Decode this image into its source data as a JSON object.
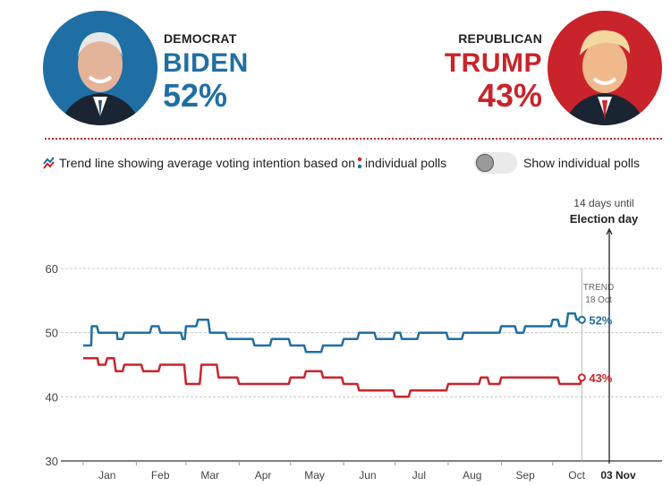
{
  "candidates": {
    "dem": {
      "party": "DEMOCRAT",
      "name": "BIDEN",
      "pct": "52%",
      "color": "#1f6fa4"
    },
    "rep": {
      "party": "REPUBLICAN",
      "name": "TRUMP",
      "pct": "43%",
      "color": "#c9242b"
    }
  },
  "legend": {
    "text_before": "Trend line showing average voting intention based on",
    "text_after": "individual polls"
  },
  "toggle": {
    "label": "Show individual polls",
    "on": false
  },
  "election": {
    "days_until": "14 days until",
    "label": "Election day"
  },
  "chart_data": {
    "type": "line",
    "y_ticks": [
      "60",
      "50",
      "40",
      "30"
    ],
    "ylim": [
      30,
      60
    ],
    "x_tick_labels": [
      "Jan",
      "Feb",
      "Mar",
      "Apr",
      "May",
      "Jun",
      "Jul",
      "Aug",
      "Sep",
      "Oct",
      "03 Nov"
    ],
    "grid": true,
    "trend_marker": {
      "line1": "TREND",
      "line2": "18 Oct"
    },
    "end_labels": [
      "52%",
      "43%"
    ],
    "series": [
      {
        "color": "#1f6fa4",
        "x": [
          "2020-01-01",
          "2020-01-05",
          "2020-01-06",
          "2020-01-10",
          "2020-01-20",
          "2020-01-21",
          "2020-01-25",
          "2020-02-01",
          "2020-02-10",
          "2020-02-15",
          "2020-02-25",
          "2020-02-28",
          "2020-03-01",
          "2020-03-08",
          "2020-03-10",
          "2020-03-15",
          "2020-03-25",
          "2020-04-01",
          "2020-04-10",
          "2020-04-20",
          "2020-05-01",
          "2020-05-10",
          "2020-05-20",
          "2020-05-25",
          "2020-06-01",
          "2020-06-05",
          "2020-06-10",
          "2020-06-20",
          "2020-07-01",
          "2020-07-05",
          "2020-07-15",
          "2020-07-20",
          "2020-08-01",
          "2020-08-10",
          "2020-08-20",
          "2020-08-25",
          "2020-09-01",
          "2020-09-10",
          "2020-09-15",
          "2020-09-25",
          "2020-10-01",
          "2020-10-05",
          "2020-10-10",
          "2020-10-15",
          "2020-10-18"
        ],
        "y": [
          48,
          48,
          51,
          50,
          50,
          49,
          50,
          50,
          51,
          50,
          50,
          49,
          51,
          52,
          52,
          50,
          49,
          49,
          48,
          49,
          48,
          47,
          48,
          48,
          49,
          49,
          50,
          49,
          50,
          49,
          50,
          50,
          49,
          50,
          50,
          50,
          51,
          50,
          51,
          51,
          52,
          51,
          53,
          52,
          52
        ]
      },
      {
        "color": "#c9242b",
        "x": [
          "2020-01-01",
          "2020-01-08",
          "2020-01-10",
          "2020-01-15",
          "2020-01-20",
          "2020-01-25",
          "2020-02-01",
          "2020-02-05",
          "2020-02-15",
          "2020-02-25",
          "2020-03-01",
          "2020-03-10",
          "2020-03-20",
          "2020-04-01",
          "2020-04-10",
          "2020-04-20",
          "2020-05-01",
          "2020-05-10",
          "2020-05-20",
          "2020-05-25",
          "2020-06-01",
          "2020-06-10",
          "2020-06-20",
          "2020-07-01",
          "2020-07-10",
          "2020-07-20",
          "2020-08-01",
          "2020-08-10",
          "2020-08-20",
          "2020-08-25",
          "2020-09-01",
          "2020-09-10",
          "2020-09-20",
          "2020-10-01",
          "2020-10-05",
          "2020-10-10",
          "2020-10-18"
        ],
        "y": [
          46,
          46,
          45,
          46,
          44,
          45,
          45,
          44,
          45,
          45,
          42,
          45,
          43,
          42,
          42,
          42,
          43,
          44,
          43,
          43,
          42,
          41,
          41,
          40,
          41,
          41,
          42,
          42,
          43,
          42,
          43,
          43,
          43,
          43,
          42,
          42,
          43
        ]
      }
    ]
  }
}
